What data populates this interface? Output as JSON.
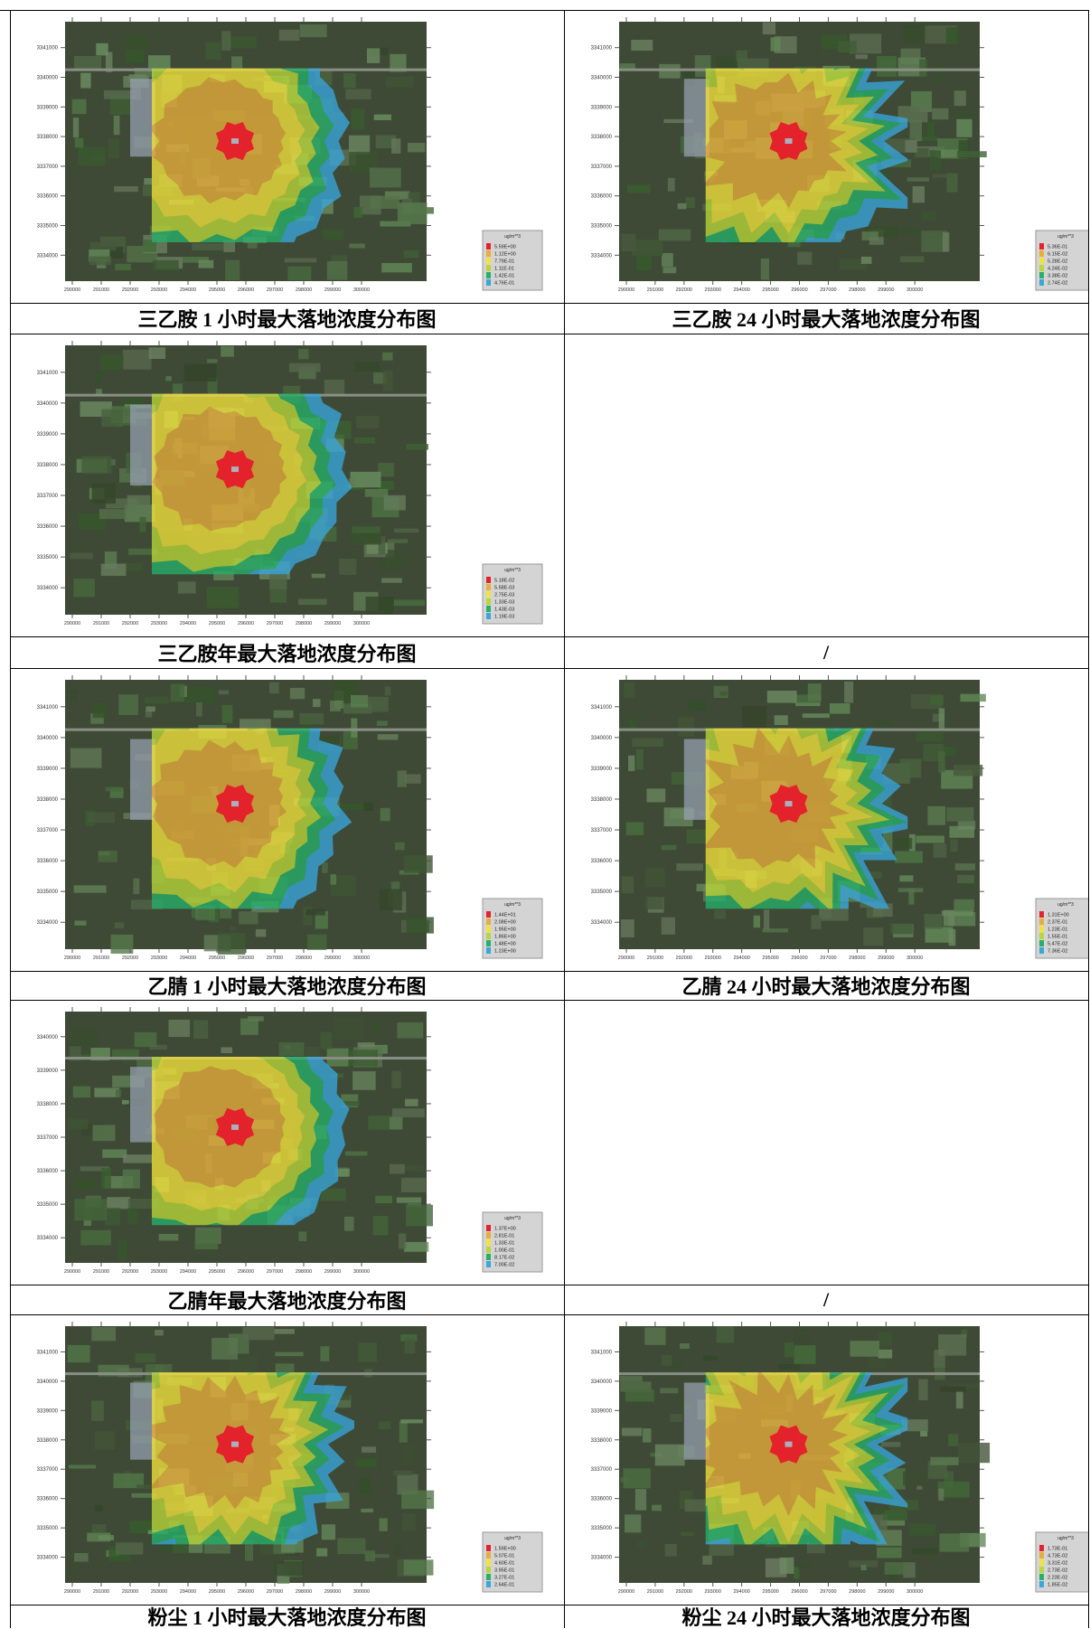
{
  "table": {
    "rows": [
      {
        "cells": [
          {
            "map": {
              "yticks": [
                3341000,
                3340000,
                3339000,
                3338000,
                3337000,
                3336000,
                3335000,
                3334000
              ],
              "xticks": [
                290000,
                291000,
                292000,
                293000,
                294000,
                295000,
                296000,
                297000,
                298000,
                299000,
                300000
              ],
              "legend": {
                "unit": "ug/m**3",
                "values": [
                  "5.59E+00",
                  "1.12E+00",
                  "7.79E-01",
                  "1.11E-01",
                  "1.42E-01",
                  "4.76E-01"
                ]
              }
            },
            "caption": "三乙胺 1 小时最大落地浓度分布图"
          },
          {
            "map": {
              "yticks": [
                3341000,
                3340000,
                3339000,
                3338000,
                3337000,
                3336000,
                3335000,
                3334000
              ],
              "xticks": [
                290000,
                291000,
                292000,
                293000,
                294000,
                295000,
                296000,
                297000,
                298000,
                299000,
                300000
              ],
              "legend": {
                "unit": "ug/m**3",
                "values": [
                  "5.36E-01",
                  "6.15E-02",
                  "5.28E-02",
                  "4.24E-02",
                  "3.38E-02",
                  "2.74E-02"
                ]
              }
            },
            "caption": "三乙胺 24 小时最大落地浓度分布图"
          }
        ]
      },
      {
        "cells": [
          {
            "map": {
              "yticks": [
                3341000,
                3340000,
                3339000,
                3338000,
                3337000,
                3336000,
                3335000,
                3334000
              ],
              "xticks": [
                290000,
                291000,
                292000,
                293000,
                294000,
                295000,
                296000,
                297000,
                298000,
                299000,
                300000
              ],
              "legend": {
                "unit": "ug/m**3",
                "values": [
                  "5.18E-02",
                  "5.58E-03",
                  "2.75E-03",
                  "1.33E-03",
                  "1.43E-03",
                  "1.19E-03"
                ]
              }
            },
            "caption": "三乙胺年最大落地浓度分布图"
          },
          {
            "caption": "/"
          }
        ]
      },
      {
        "cells": [
          {
            "map": {
              "yticks": [
                3341000,
                3340000,
                3339000,
                3338000,
                3337000,
                3336000,
                3335000,
                3334000
              ],
              "xticks": [
                290000,
                291000,
                292000,
                293000,
                294000,
                295000,
                296000,
                297000,
                298000,
                299000,
                300000
              ],
              "legend": {
                "unit": "ug/m**3",
                "values": [
                  "1.44E+01",
                  "2.08E+00",
                  "1.95E+00",
                  "1.86E+00",
                  "1.48E+00",
                  "1.23E+00"
                ]
              }
            },
            "caption": "乙腈 1 小时最大落地浓度分布图"
          },
          {
            "map": {
              "yticks": [
                3341000,
                3340000,
                3339000,
                3338000,
                3337000,
                3336000,
                3335000,
                3334000
              ],
              "xticks": [
                290000,
                291000,
                292000,
                293000,
                294000,
                295000,
                296000,
                297000,
                298000,
                299000,
                300000
              ],
              "legend": {
                "unit": "ug/m**3",
                "values": [
                  "1.31E+00",
                  "2.37E-01",
                  "1.23E-01",
                  "1.55E-01",
                  "5.47E-02",
                  "7.36E-02"
                ]
              }
            },
            "caption": "乙腈 24 小时最大落地浓度分布图"
          }
        ]
      },
      {
        "cells": [
          {
            "map": {
              "yticks": [
                3340000,
                3339000,
                3338000,
                3337000,
                3336000,
                3335000,
                3334000
              ],
              "xticks": [
                290000,
                291000,
                292000,
                293000,
                294000,
                295000,
                296000,
                297000,
                298000,
                299000,
                300000
              ],
              "legend": {
                "unit": "ug/m**3",
                "values": [
                  "1.37E+00",
                  "2.81E-01",
                  "1.33E-01",
                  "1.00E-01",
                  "8.17E-02",
                  "7.00E-02"
                ]
              }
            },
            "caption": "乙腈年最大落地浓度分布图"
          },
          {
            "caption": "/"
          }
        ]
      },
      {
        "cells": [
          {
            "map": {
              "yticks": [
                3341000,
                3340000,
                3339000,
                3338000,
                3337000,
                3336000,
                3335000,
                3334000
              ],
              "xticks": [
                290000,
                291000,
                292000,
                293000,
                294000,
                295000,
                296000,
                297000,
                298000,
                299000,
                300000
              ],
              "legend": {
                "unit": "ug/m**3",
                "values": [
                  "1.59E+00",
                  "5.07E-01",
                  "4.60E-01",
                  "3.95E-01",
                  "3.27E-01",
                  "2.64E-01"
                ]
              }
            },
            "caption": "粉尘 1 小时最大落地浓度分布图"
          },
          {
            "map": {
              "yticks": [
                3341000,
                3340000,
                3339000,
                3338000,
                3337000,
                3336000,
                3335000,
                3334000
              ],
              "xticks": [
                290000,
                291000,
                292000,
                293000,
                294000,
                295000,
                296000,
                297000,
                298000,
                299000,
                300000
              ],
              "legend": {
                "unit": "ug/m**3",
                "values": [
                  "1.73E-01",
                  "4.73E-02",
                  "3.31E-02",
                  "2.73E-02",
                  "2.23E-02",
                  "1.85E-02"
                ]
              }
            },
            "caption": "粉尘 24 小时最大落地浓度分布图"
          }
        ]
      }
    ]
  }
}
